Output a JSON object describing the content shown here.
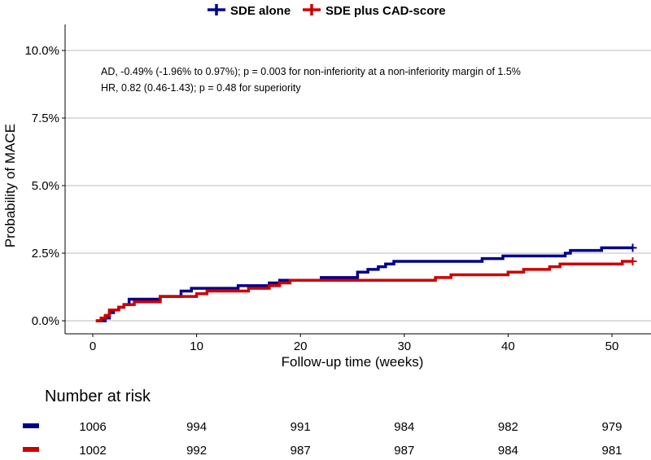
{
  "chart_data": {
    "type": "line",
    "subtype": "kaplan-meier",
    "xlabel": "Follow-up time (weeks)",
    "ylabel": "Probability of MACE",
    "xlim": [
      -2,
      54
    ],
    "ylim": [
      0,
      10
    ],
    "x_ticks": [
      0,
      10,
      20,
      30,
      40,
      50
    ],
    "y_ticks": [
      0,
      2.5,
      5,
      7.5,
      10
    ],
    "y_tick_labels": [
      "0.0%",
      "2.5%",
      "5.0%",
      "7.5%",
      "10.0%"
    ],
    "grid": "horizontal",
    "legend_position": "top",
    "annotations": [
      "AD, -0.49% (-1.96% to 0.97%);  p = 0.003 for non-inferiority at a non-inferiority margin of 1.5%",
      "HR, 0.82 (0.46-1.43); p = 0.48 for superiority"
    ],
    "series": [
      {
        "name": "SDE alone",
        "color": "#00008B",
        "end_week": 52,
        "steps": [
          [
            0.3,
            0
          ],
          [
            1.2,
            0.1
          ],
          [
            1.6,
            0.3
          ],
          [
            2,
            0.4
          ],
          [
            2.5,
            0.5
          ],
          [
            3,
            0.6
          ],
          [
            3.5,
            0.8
          ],
          [
            6.5,
            0.9
          ],
          [
            8.5,
            1.1
          ],
          [
            9.5,
            1.2
          ],
          [
            14,
            1.3
          ],
          [
            17,
            1.4
          ],
          [
            18,
            1.5
          ],
          [
            22,
            1.6
          ],
          [
            25.5,
            1.8
          ],
          [
            26.5,
            1.9
          ],
          [
            27.5,
            2.0
          ],
          [
            28.2,
            2.1
          ],
          [
            29,
            2.2
          ],
          [
            37.5,
            2.3
          ],
          [
            39.5,
            2.4
          ],
          [
            45.5,
            2.5
          ],
          [
            46,
            2.6
          ],
          [
            49,
            2.7
          ]
        ]
      },
      {
        "name": "SDE plus CAD-score",
        "color": "#CD0000",
        "end_week": 52,
        "steps": [
          [
            0.3,
            0
          ],
          [
            0.8,
            0.1
          ],
          [
            1.2,
            0.2
          ],
          [
            1.6,
            0.4
          ],
          [
            2.5,
            0.5
          ],
          [
            3,
            0.6
          ],
          [
            4,
            0.7
          ],
          [
            6.5,
            0.9
          ],
          [
            10,
            1.0
          ],
          [
            11,
            1.1
          ],
          [
            15,
            1.2
          ],
          [
            17,
            1.3
          ],
          [
            18,
            1.4
          ],
          [
            19,
            1.5
          ],
          [
            33,
            1.6
          ],
          [
            34.5,
            1.7
          ],
          [
            40,
            1.8
          ],
          [
            41.5,
            1.9
          ],
          [
            44,
            2.0
          ],
          [
            45,
            2.1
          ],
          [
            51,
            2.2
          ]
        ]
      }
    ],
    "risk_table": {
      "title": "Number at risk",
      "times": [
        0,
        10,
        20,
        30,
        40,
        50
      ],
      "rows": [
        {
          "name": "SDE alone",
          "values": [
            "1006",
            "994",
            "991",
            "984",
            "982",
            "979"
          ]
        },
        {
          "name": "SDE plus CAD-score",
          "values": [
            "1002",
            "992",
            "987",
            "987",
            "984",
            "981"
          ]
        }
      ]
    }
  }
}
